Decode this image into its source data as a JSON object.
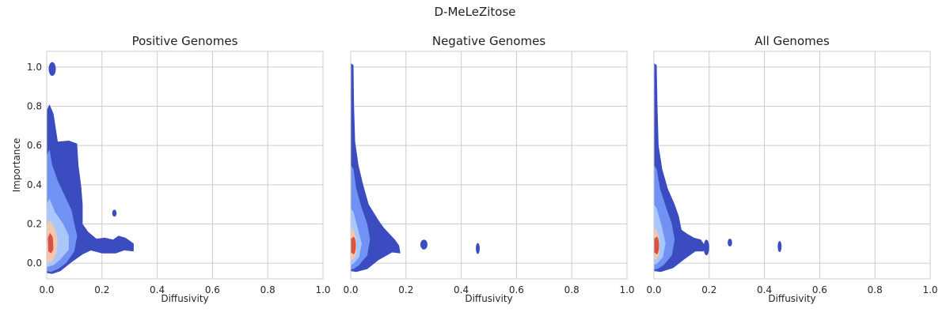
{
  "figure": {
    "title": "D-MeLeZitose"
  },
  "colors": {
    "contour_low": "#3b4cc0",
    "contour_mid": "#6f92f3",
    "contour_light": "#aac7fd",
    "contour_warm": "#f4c6b0",
    "contour_high": "#d65244",
    "grid": "#cccccc",
    "frame": "#cccccc"
  },
  "chart_data": [
    {
      "type": "kde-contour",
      "title": "Positive Genomes",
      "xlabel": "Diffusivity",
      "ylabel": "Importance",
      "xlim": [
        0.0,
        1.0
      ],
      "ylim": [
        -0.08,
        1.08
      ],
      "xticks": [
        "0.0",
        "0.2",
        "0.4",
        "0.6",
        "0.8",
        "1.0"
      ],
      "yticks": [
        "0.0",
        "0.2",
        "0.4",
        "0.6",
        "0.8",
        "1.0"
      ],
      "density_peak": {
        "x": 0.015,
        "y": 0.1
      },
      "islands": [
        {
          "x": 0.02,
          "y": 0.99
        },
        {
          "x": 0.245,
          "y": 0.255
        }
      ],
      "grid": true
    },
    {
      "type": "kde-contour",
      "title": "Negative Genomes",
      "xlabel": "Diffusivity",
      "ylabel": "",
      "xlim": [
        0.0,
        1.0
      ],
      "ylim": [
        -0.08,
        1.08
      ],
      "xticks": [
        "0.0",
        "0.2",
        "0.4",
        "0.6",
        "0.8",
        "1.0"
      ],
      "yticks": [],
      "density_peak": {
        "x": 0.01,
        "y": 0.09
      },
      "islands": [
        {
          "x": 0.265,
          "y": 0.095
        },
        {
          "x": 0.46,
          "y": 0.075
        }
      ],
      "grid": true
    },
    {
      "type": "kde-contour",
      "title": "All Genomes",
      "xlabel": "Diffusivity",
      "ylabel": "",
      "xlim": [
        0.0,
        1.0
      ],
      "ylim": [
        -0.08,
        1.08
      ],
      "xticks": [
        "0.0",
        "0.2",
        "0.4",
        "0.6",
        "0.8",
        "1.0"
      ],
      "yticks": [],
      "density_peak": {
        "x": 0.01,
        "y": 0.09
      },
      "islands": [
        {
          "x": 0.19,
          "y": 0.08
        },
        {
          "x": 0.275,
          "y": 0.105
        },
        {
          "x": 0.455,
          "y": 0.085
        }
      ],
      "grid": true
    }
  ]
}
